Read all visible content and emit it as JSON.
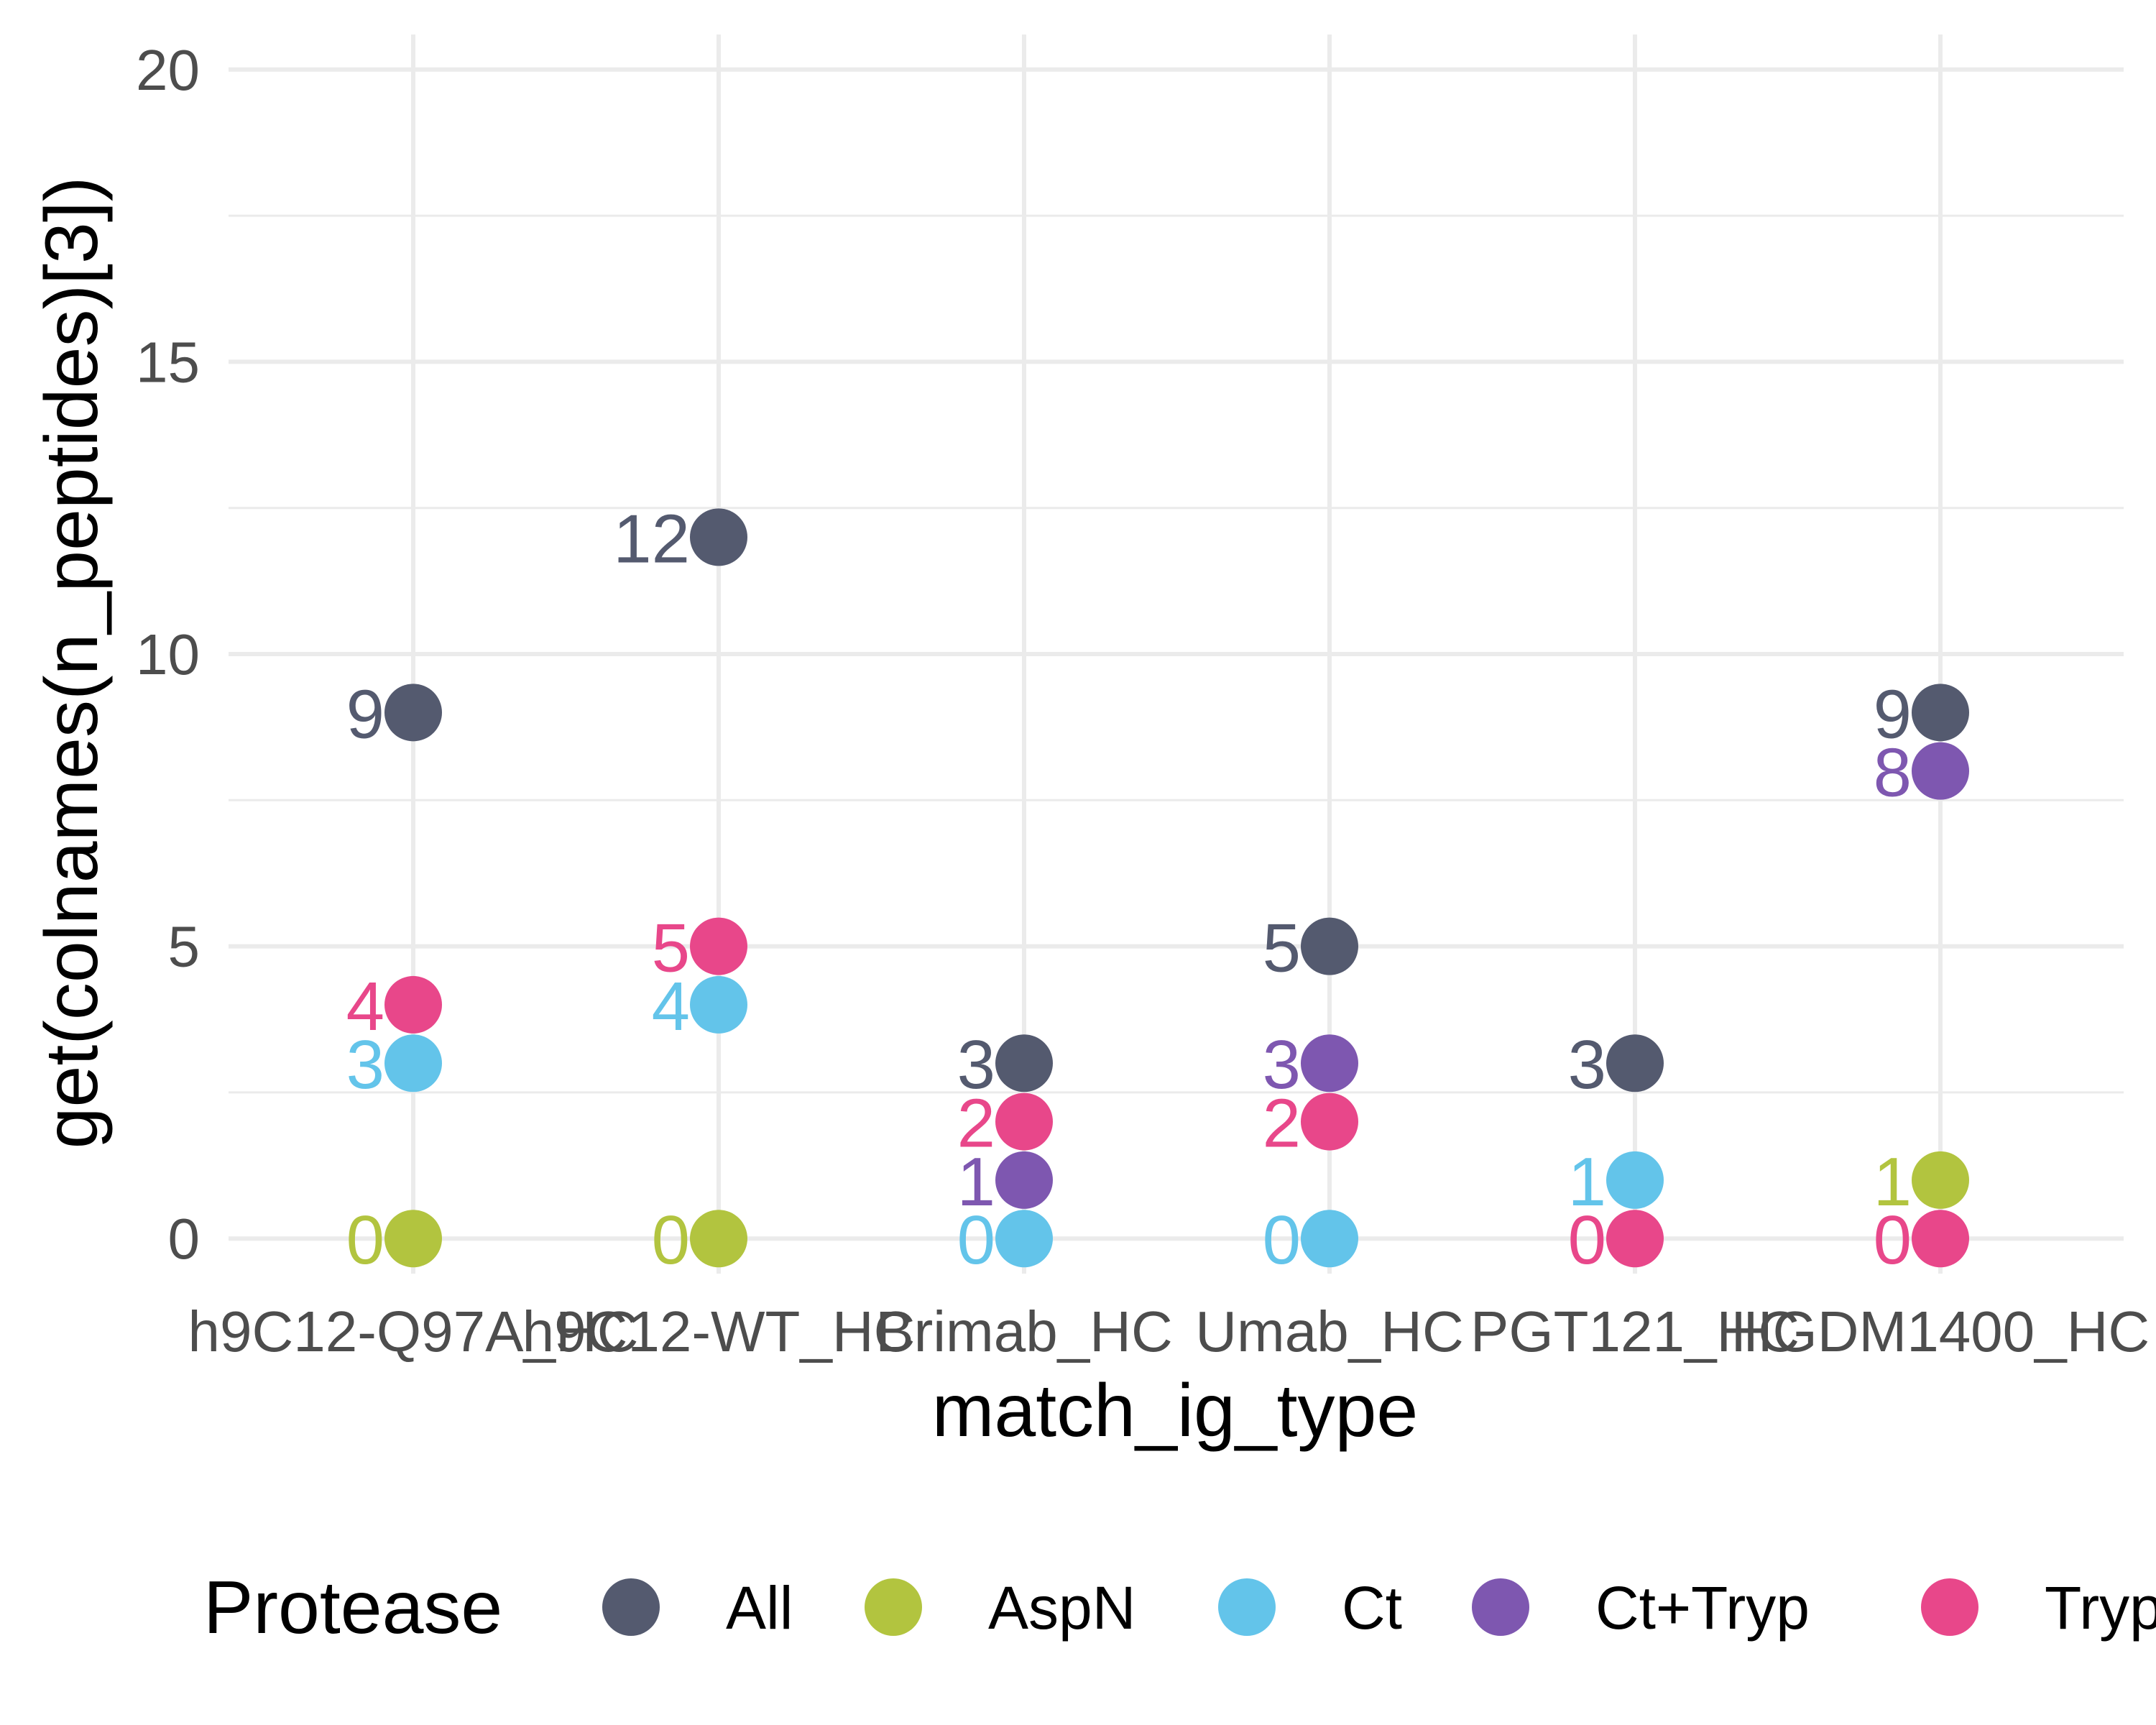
{
  "chart_data": {
    "type": "scatter",
    "xlabel": "match_ig_type",
    "ylabel": "get(colnames(n_peptides)[3])",
    "ylim": [
      -0.6,
      20.6
    ],
    "y_ticks": [
      0,
      5,
      10,
      15,
      20
    ],
    "grid": true,
    "legend_position": "bottom",
    "legend_title": "Protease",
    "categories": [
      "h9C12-Q97A_HC",
      "h9C12-WT_HC",
      "Brimab_HC",
      "Umab_HC",
      "PGT121_HC",
      "HGDM1400_HC"
    ],
    "series": [
      {
        "name": "All",
        "color": "#545a6f",
        "values": [
          9,
          12,
          3,
          5,
          3,
          9
        ]
      },
      {
        "name": "AspN",
        "color": "#b2c43f",
        "values": [
          0,
          0,
          null,
          null,
          null,
          1
        ]
      },
      {
        "name": "Ct",
        "color": "#63c4ea",
        "values": [
          3,
          4,
          0,
          0,
          1,
          null
        ]
      },
      {
        "name": "Ct+Tryp",
        "color": "#7e57b0",
        "values": [
          null,
          null,
          1,
          3,
          null,
          8
        ]
      },
      {
        "name": "Tryp",
        "color": "#e8478a",
        "values": [
          4,
          5,
          2,
          2,
          0,
          0
        ]
      }
    ]
  }
}
